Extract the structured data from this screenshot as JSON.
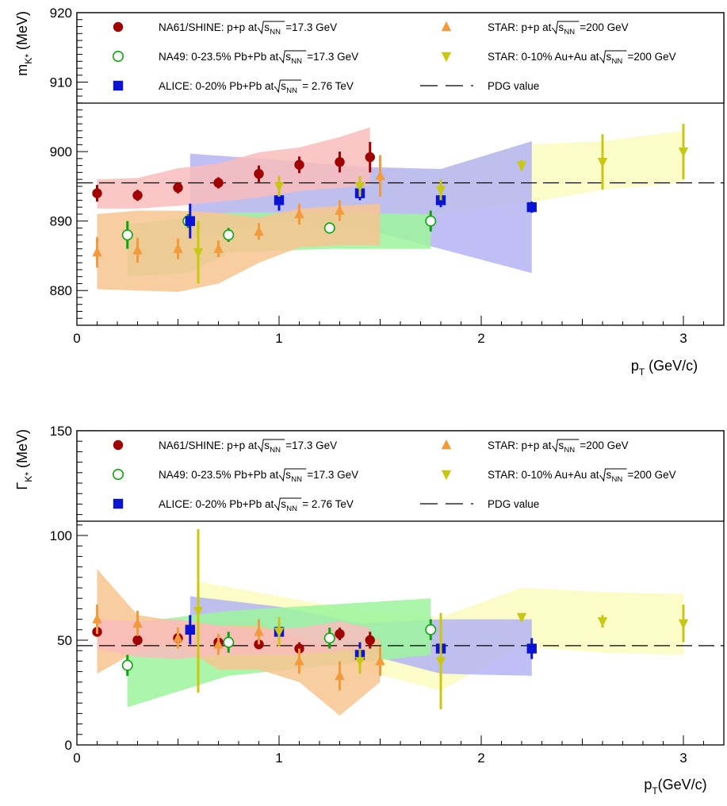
{
  "colors": {
    "na61": "#a00000",
    "na49": "#0aa50a",
    "alice": "#0a14d2",
    "star_pp": "#f39a3c",
    "star_auau": "#c8c814",
    "band_na61": "#f9bcbc",
    "band_na49": "#9cf59c",
    "band_alice": "#b4b4f3",
    "band_star_pp": "#f7c48f",
    "band_star_auau": "#fbfbc0"
  },
  "chart_data": [
    {
      "type": "scatter",
      "title": "",
      "xlabel": "p_T (GeV/c)",
      "ylabel": "m_K* (MeV)",
      "xlim": [
        0,
        3.2
      ],
      "ylim": [
        875,
        920
      ],
      "x_ticks": [
        "0",
        "1",
        "2",
        "3"
      ],
      "y_ticks": [
        "880",
        "890",
        "900",
        "910",
        "920"
      ],
      "y_tick_values": [
        880,
        890,
        900,
        910,
        920
      ],
      "pdg_value": 895.5,
      "legend": {
        "na61": {
          "prefix": "NA61/SHINE: p+p at ",
          "suffix": "=17.3 GeV"
        },
        "na49": {
          "prefix": "NA49: 0-23.5% Pb+Pb at ",
          "suffix": "=17.3 GeV"
        },
        "alice": {
          "prefix": "ALICE: 0-20% Pb+Pb at ",
          "suffix": "= 2.76 TeV"
        },
        "star_pp": {
          "prefix": "STAR: p+p at ",
          "suffix": "=200 GeV"
        },
        "star_auau": {
          "prefix": "STAR: 0-10% Au+Au at ",
          "suffix": "=200 GeV"
        },
        "pdg": "PDG value"
      },
      "series": [
        {
          "key": "na61",
          "marker": "circle",
          "x": [
            0.1,
            0.3,
            0.5,
            0.7,
            0.9,
            1.1,
            1.3,
            1.45
          ],
          "y": [
            894,
            893.7,
            894.8,
            895.5,
            896.8,
            898.1,
            898.5,
            899.2
          ],
          "err": [
            1.2,
            0.8,
            0.8,
            0.8,
            1.2,
            1.2,
            1.5,
            2.2
          ],
          "band": {
            "x": [
              0.1,
              0.3,
              0.5,
              0.7,
              0.9,
              1.1,
              1.3,
              1.45
            ],
            "lo": [
              891.8,
              891.8,
              892.2,
              892.8,
              893.4,
              894.3,
              894.8,
              895.2
            ],
            "hi": [
              896,
              896.2,
              897.6,
              898.3,
              899.9,
              900.6,
              902.1,
              903.5
            ]
          }
        },
        {
          "key": "na49",
          "marker": "open-circle",
          "x": [
            0.25,
            0.55,
            0.75,
            1.25,
            1.75
          ],
          "y": [
            888,
            890,
            888,
            889,
            890
          ],
          "err": [
            2.0,
            1.0,
            1.0,
            0.8,
            1.5
          ],
          "band": {
            "x": [
              0.25,
              0.55,
              0.75,
              1.25,
              1.75
            ],
            "lo": [
              882,
              882.5,
              885.5,
              886,
              886
            ],
            "hi": [
              889.5,
              890.5,
              891.2,
              891.2,
              891
            ]
          }
        },
        {
          "key": "alice",
          "marker": "square",
          "x": [
            0.56,
            1.0,
            1.4,
            1.8,
            2.25
          ],
          "y": [
            890,
            893,
            894,
            893,
            892
          ],
          "err": [
            2.5,
            1.5,
            1.0,
            1.0,
            0.8
          ],
          "band": {
            "x": [
              0.56,
              1.0,
              1.4,
              1.8,
              2.25
            ],
            "lo": [
              888,
              890,
              889,
              886,
              882.5
            ],
            "hi": [
              899.7,
              898.8,
              897.8,
              897.5,
              901.5
            ]
          }
        },
        {
          "key": "star_pp",
          "marker": "triangle-up",
          "x": [
            0.1,
            0.3,
            0.5,
            0.7,
            0.9,
            1.1,
            1.3,
            1.5
          ],
          "y": [
            885.5,
            885.8,
            886,
            886,
            888.5,
            891,
            891.5,
            896.5
          ],
          "err": [
            2.2,
            1.8,
            1.5,
            1.2,
            1.2,
            1.5,
            1.5,
            3.0
          ],
          "band": {
            "x": [
              0.1,
              0.3,
              0.5,
              0.7,
              0.9,
              1.1,
              1.3,
              1.5
            ],
            "lo": [
              880.2,
              880,
              879.8,
              881,
              884,
              886.2,
              886.5,
              886.5
            ],
            "hi": [
              891,
              891.5,
              891.5,
              891.2,
              890.5,
              891.8,
              892.2,
              892.5
            ]
          }
        },
        {
          "key": "star_auau",
          "marker": "triangle-down",
          "x": [
            0.6,
            1.0,
            1.4,
            1.8,
            2.2,
            2.6,
            3.0
          ],
          "y": [
            885.5,
            895,
            895,
            894.5,
            898,
            898.5,
            900
          ],
          "err": [
            4.5,
            1.5,
            1.5,
            1.5,
            0.8,
            4.0,
            4.0
          ],
          "band": {
            "x": [
              0.6,
              1.0,
              1.4,
              1.8,
              2.2,
              2.6,
              3.0
            ],
            "lo": [
              884.5,
              889.5,
              890.5,
              891,
              892.5,
              894.5,
              895.5
            ],
            "hi": [
              891.5,
              895.2,
              897.5,
              897.5,
              901,
              901.5,
              903
            ]
          }
        }
      ]
    },
    {
      "type": "scatter",
      "title": "",
      "xlabel": "p_T(GeV/c)",
      "ylabel": "Γ_K* (MeV)",
      "xlim": [
        0,
        3.2
      ],
      "ylim": [
        0,
        150
      ],
      "x_ticks": [
        "0",
        "1",
        "2",
        "3"
      ],
      "y_ticks": [
        "0",
        "50",
        "100",
        "150"
      ],
      "y_tick_values": [
        0,
        50,
        100,
        150
      ],
      "pdg_value": 47.4,
      "legend": {
        "na61": {
          "prefix": "NA61/SHINE: p+p at ",
          "suffix": "=17.3 GeV"
        },
        "na49": {
          "prefix": "NA49: 0-23.5% Pb+Pb at ",
          "suffix": "=17.3 GeV"
        },
        "alice": {
          "prefix": "ALICE: 0-20% Pb+Pb at ",
          "suffix": "= 2.76 TeV"
        },
        "star_pp": {
          "prefix": "STAR: p+p at ",
          "suffix": "=200 GeV"
        },
        "star_auau": {
          "prefix": "STAR: 0-10% Au+Au at ",
          "suffix": "=200 GeV"
        },
        "pdg": "PDG value"
      },
      "series": [
        {
          "key": "na61",
          "marker": "circle",
          "x": [
            0.1,
            0.3,
            0.5,
            0.7,
            0.9,
            1.1,
            1.3,
            1.45
          ],
          "y": [
            54,
            50,
            51,
            49,
            48,
            46,
            53,
            50
          ],
          "err": [
            2,
            2,
            4,
            3,
            2,
            3,
            3,
            4
          ],
          "band": {
            "x": [
              0.1,
              0.3,
              0.5,
              0.7,
              0.9,
              1.1,
              1.3,
              1.45
            ],
            "lo": [
              46,
              42,
              41,
              43,
              43,
              43,
              45,
              46
            ],
            "hi": [
              60,
              59,
              60,
              57,
              55,
              56,
              59,
              56
            ]
          }
        },
        {
          "key": "na49",
          "marker": "open-circle",
          "x": [
            0.25,
            0.75,
            1.25,
            1.75
          ],
          "y": [
            38,
            49,
            51,
            55
          ],
          "err": [
            5,
            5,
            5,
            5
          ],
          "band": {
            "x": [
              0.25,
              0.75,
              1.25,
              1.75
            ],
            "lo": [
              18,
              33,
              38,
              43
            ],
            "hi": [
              58,
              64,
              67,
              70
            ]
          }
        },
        {
          "key": "alice",
          "marker": "square",
          "x": [
            0.56,
            1.0,
            1.4,
            1.8,
            2.25
          ],
          "y": [
            55,
            54,
            43,
            46,
            46
          ],
          "err": [
            7,
            4,
            6,
            5,
            5
          ],
          "band": {
            "x": [
              0.56,
              1.0,
              1.4,
              1.8,
              2.25
            ],
            "lo": [
              46,
              45,
              44,
              34,
              33
            ],
            "hi": [
              71,
              66,
              58,
              60,
              60
            ]
          }
        },
        {
          "key": "star_pp",
          "marker": "triangle-up",
          "x": [
            0.1,
            0.3,
            0.5,
            0.7,
            0.9,
            1.1,
            1.3,
            1.5
          ],
          "y": [
            60,
            58,
            51,
            48,
            54,
            40,
            33,
            40
          ],
          "err": [
            7,
            6,
            5,
            5,
            6,
            6,
            7,
            7
          ],
          "band": {
            "x": [
              0.1,
              0.3,
              0.5,
              0.7,
              0.9,
              1.1,
              1.3,
              1.5
            ],
            "lo": [
              34,
              45,
              48,
              36,
              36,
              30,
              14,
              30
            ],
            "hi": [
              84,
              62,
              59,
              57,
              57,
              51,
              46,
              51
            ]
          }
        },
        {
          "key": "star_auau",
          "marker": "triangle-down",
          "x": [
            0.6,
            1.0,
            1.4,
            1.8,
            2.2,
            2.6,
            3.0
          ],
          "y": [
            64,
            54,
            40,
            40,
            61,
            59,
            58
          ],
          "err": [
            39,
            7,
            6,
            23,
            2,
            3,
            9
          ],
          "band": {
            "x": [
              0.6,
              1.0,
              1.4,
              1.8,
              2.2,
              2.6,
              3.0
            ],
            "lo": [
              52,
              45,
              36,
              26,
              47,
              44,
              43
            ],
            "hi": [
              78,
              71,
              64,
              61,
              75,
              73,
              72
            ]
          }
        }
      ]
    }
  ]
}
